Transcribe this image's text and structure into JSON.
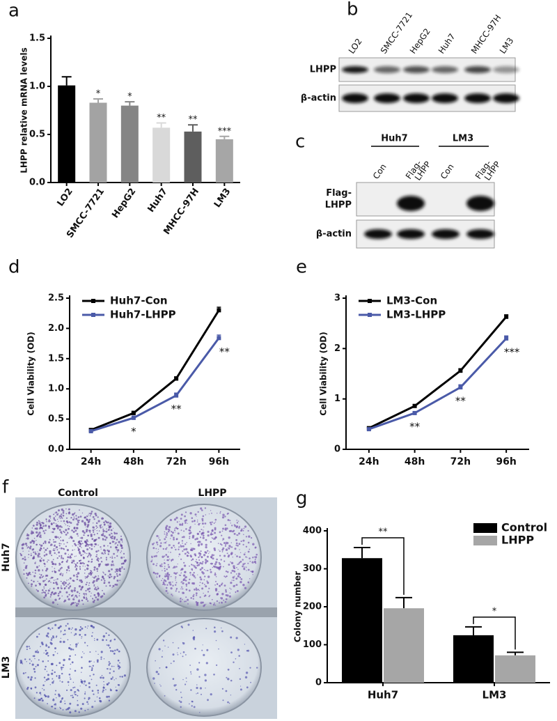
{
  "chart_data": [
    {
      "panel": "a",
      "type": "bar",
      "y_label": "LHPP relative mRNA levels",
      "categories": [
        "LO2",
        "SMCC-7721",
        "HepG2",
        "Huh7",
        "MHCC-97H",
        "LM3"
      ],
      "values": [
        1.01,
        0.83,
        0.8,
        0.57,
        0.53,
        0.45
      ],
      "errors": [
        0.09,
        0.04,
        0.04,
        0.05,
        0.07,
        0.03
      ],
      "colors": [
        "#000000",
        "#a3a3a3",
        "#858585",
        "#d9d9d9",
        "#5e5e5e",
        "#a6a6a6"
      ],
      "significance": [
        null,
        "*",
        "*",
        "**",
        "**",
        "***"
      ],
      "ylim": [
        0,
        1.5
      ],
      "yticks": [
        {
          "value": 0,
          "label": "0.0"
        },
        {
          "value": 0.5,
          "label": "0.5"
        },
        {
          "value": 1,
          "label": "1.0"
        },
        {
          "value": 1.5,
          "label": "1.5"
        }
      ]
    },
    {
      "panel": "d",
      "type": "line",
      "y_label": "Cell Viability (OD)",
      "categories": [
        "24h",
        "48h",
        "72h",
        "96h"
      ],
      "series": [
        {
          "name": "Huh7-Con",
          "color": "#000000",
          "values": [
            0.32,
            0.6,
            1.17,
            2.3
          ],
          "errors": [
            0.02,
            0.03,
            0.03,
            0.05
          ]
        },
        {
          "name": "Huh7-LHPP",
          "color": "#4a5aa8",
          "values": [
            0.3,
            0.52,
            0.89,
            1.84
          ],
          "errors": [
            0.02,
            0.03,
            0.04,
            0.05
          ]
        }
      ],
      "significance": [
        null,
        "*",
        "**",
        "**"
      ],
      "ylim": [
        0,
        2.5
      ],
      "yticks": [
        {
          "value": 0,
          "label": "0.0"
        },
        {
          "value": 0.5,
          "label": "0.5"
        },
        {
          "value": 1,
          "label": "1.0"
        },
        {
          "value": 1.5,
          "label": "1.5"
        },
        {
          "value": 2,
          "label": "2.0"
        },
        {
          "value": 2.5,
          "label": "2.5"
        }
      ]
    },
    {
      "panel": "e",
      "type": "line",
      "y_label": "Cell Viability (OD)",
      "categories": [
        "24h",
        "48h",
        "72h",
        "96h"
      ],
      "series": [
        {
          "name": "LM3-Con",
          "color": "#000000",
          "values": [
            0.42,
            0.86,
            1.56,
            2.63
          ],
          "errors": [
            0.02,
            0.03,
            0.04,
            0.04
          ]
        },
        {
          "name": "LM3-LHPP",
          "color": "#4a5aa8",
          "values": [
            0.4,
            0.72,
            1.23,
            2.2
          ],
          "errors": [
            0.02,
            0.03,
            0.05,
            0.05
          ]
        }
      ],
      "significance": [
        null,
        "**",
        "**",
        "***"
      ],
      "ylim": [
        0,
        3
      ],
      "yticks": [
        0,
        1,
        2,
        3
      ]
    },
    {
      "panel": "g",
      "type": "bar",
      "y_label": "Colony number",
      "categories": [
        "Huh7",
        "LM3"
      ],
      "series": [
        {
          "name": "Control",
          "color": "#000000",
          "values": [
            328,
            125
          ],
          "errors": [
            28,
            22
          ]
        },
        {
          "name": "LHPP",
          "color": "#a6a6a6",
          "values": [
            196,
            72
          ],
          "errors": [
            28,
            8
          ]
        }
      ],
      "significance": [
        "**",
        "*"
      ],
      "ylim": [
        0,
        400
      ],
      "yticks": [
        0,
        100,
        200,
        300,
        400
      ]
    }
  ],
  "blot_b": {
    "panel": "b",
    "lanes": [
      "LO2",
      "SMCC-7721",
      "HepG2",
      "Huh7",
      "MHCC-97H",
      "LM3"
    ],
    "rows": [
      "LHPP",
      "β-actin"
    ]
  },
  "blot_c": {
    "panel": "c",
    "groups": [
      "Huh7",
      "LM3"
    ],
    "lanes": [
      [
        "Con"
      ],
      [
        "Flag-",
        "LHPP"
      ],
      [
        "Con"
      ],
      [
        "Flag-",
        "LHPP"
      ]
    ],
    "rows": [
      [
        "Flag-",
        "LHPP"
      ],
      [
        "β-actin"
      ]
    ]
  },
  "photo_f": {
    "panel": "f",
    "columns": [
      "Control",
      "LHPP"
    ],
    "rows": [
      "Huh7",
      "LM3"
    ]
  }
}
